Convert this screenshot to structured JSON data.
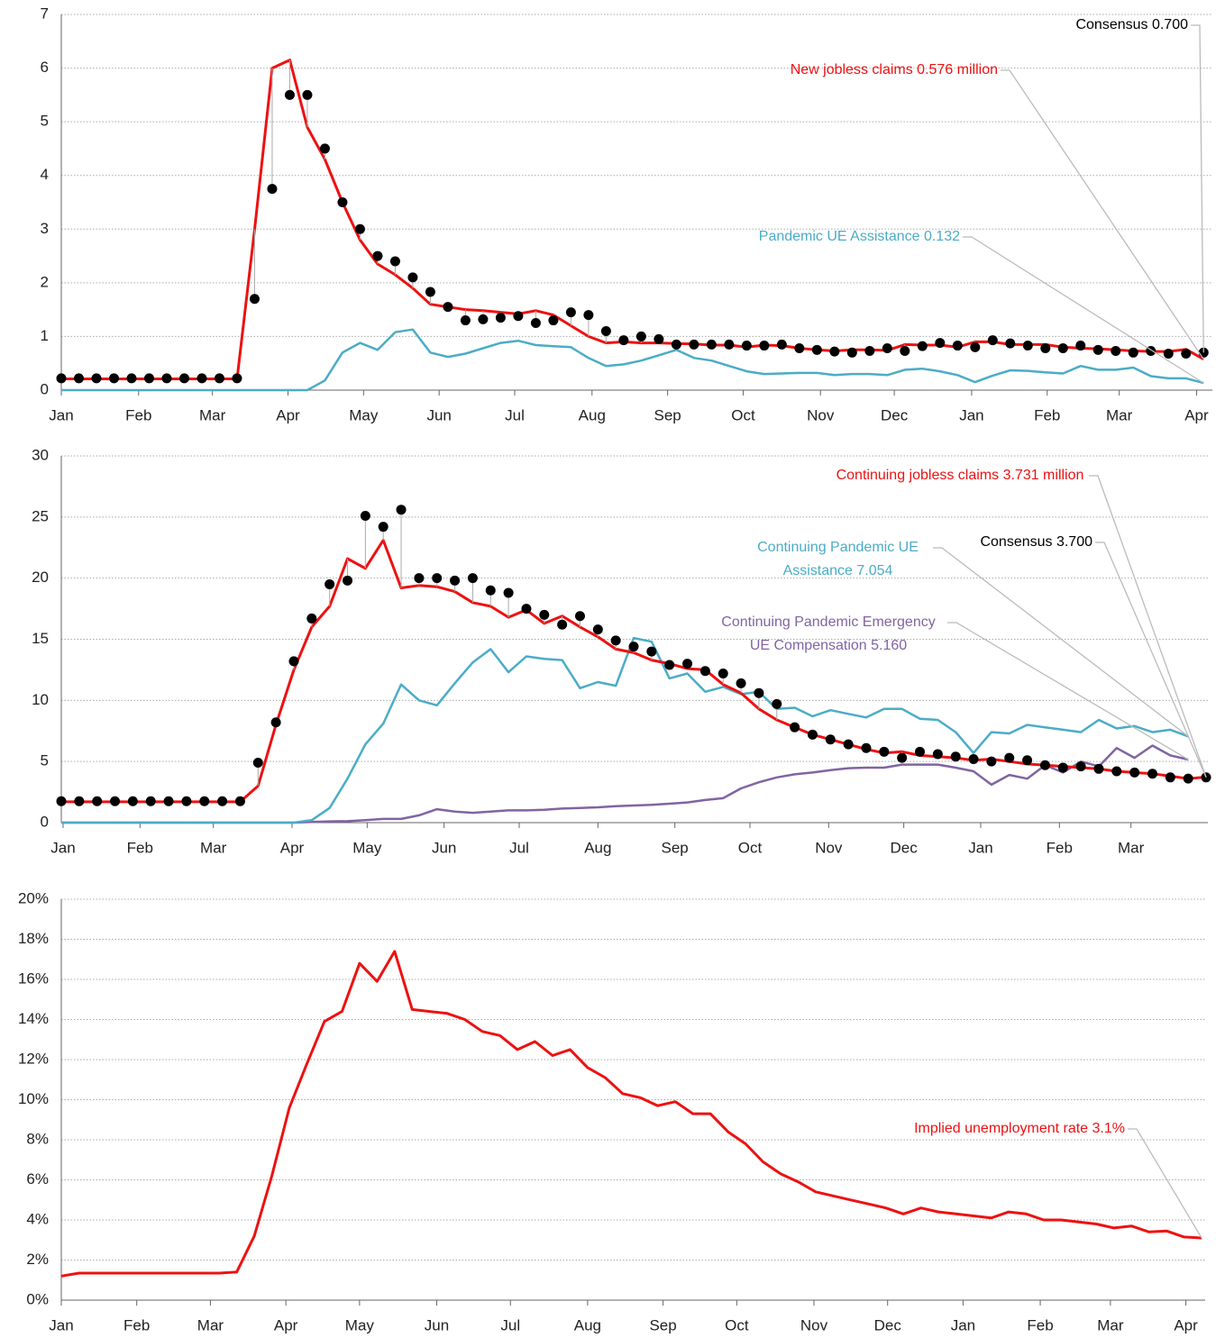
{
  "chart_data": [
    {
      "type": "line",
      "x": [
        0,
        1,
        2,
        3,
        4,
        5,
        6,
        7,
        8,
        9,
        10,
        11,
        12,
        13,
        14,
        15,
        16,
        17,
        18,
        19,
        20,
        21,
        22,
        23,
        24,
        25,
        26,
        27,
        28,
        29,
        30,
        31,
        32,
        33,
        34,
        35,
        36,
        37,
        38,
        39,
        40,
        41,
        42,
        43,
        44,
        45,
        46,
        47,
        48,
        49,
        50,
        51,
        52,
        53,
        54,
        55,
        56,
        57,
        58,
        59,
        60,
        61,
        62,
        63,
        64,
        65
      ],
      "xlim": [
        0,
        65.5
      ],
      "xticks": [
        {
          "value": 0,
          "label": "Jan"
        },
        {
          "value": 4.4,
          "label": "Feb"
        },
        {
          "value": 8.6,
          "label": "Mar"
        },
        {
          "value": 12.9,
          "label": "Apr"
        },
        {
          "value": 17.2,
          "label": "May"
        },
        {
          "value": 21.5,
          "label": "Jun"
        },
        {
          "value": 25.8,
          "label": "Jul"
        },
        {
          "value": 30.2,
          "label": "Aug"
        },
        {
          "value": 34.5,
          "label": "Sep"
        },
        {
          "value": 38.8,
          "label": "Oct"
        },
        {
          "value": 43.2,
          "label": "Nov"
        },
        {
          "value": 47.4,
          "label": "Dec"
        },
        {
          "value": 51.8,
          "label": "Jan"
        },
        {
          "value": 56.1,
          "label": "Feb"
        },
        {
          "value": 60.2,
          "label": "Mar"
        },
        {
          "value": 64.6,
          "label": "Apr"
        }
      ],
      "ylim": [
        0,
        7
      ],
      "yticks": [
        0,
        1,
        2,
        3,
        4,
        5,
        6,
        7
      ],
      "grid": true,
      "series": [
        {
          "name": "New jobless claims 0.576 million",
          "color": "#ee1111",
          "style": "line",
          "values": [
            0.21,
            0.21,
            0.21,
            0.21,
            0.21,
            0.21,
            0.21,
            0.21,
            0.21,
            0.21,
            0.21,
            3.0,
            6.0,
            6.15,
            4.9,
            4.3,
            3.5,
            2.8,
            2.35,
            2.15,
            1.9,
            1.6,
            1.55,
            1.5,
            1.48,
            1.45,
            1.42,
            1.48,
            1.4,
            1.2,
            1.0,
            0.88,
            0.9,
            0.88,
            0.88,
            0.87,
            0.86,
            0.84,
            0.84,
            0.8,
            0.84,
            0.83,
            0.78,
            0.75,
            0.73,
            0.75,
            0.75,
            0.74,
            0.85,
            0.84,
            0.84,
            0.8,
            0.9,
            0.9,
            0.85,
            0.85,
            0.85,
            0.8,
            0.78,
            0.77,
            0.75,
            0.73,
            0.72,
            0.72,
            0.76,
            0.576
          ]
        },
        {
          "name": "Consensus 0.700",
          "color": "#000000",
          "style": "dots",
          "values": [
            0.22,
            0.22,
            0.22,
            0.22,
            0.22,
            0.22,
            0.22,
            0.22,
            0.22,
            0.22,
            0.22,
            1.7,
            3.75,
            5.5,
            5.5,
            4.5,
            3.5,
            3.0,
            2.5,
            2.4,
            2.1,
            1.83,
            1.55,
            1.3,
            1.32,
            1.35,
            1.38,
            1.25,
            1.3,
            1.45,
            1.4,
            1.1,
            0.93,
            1.0,
            0.95,
            0.85,
            0.85,
            0.85,
            0.85,
            0.83,
            0.83,
            0.85,
            0.78,
            0.75,
            0.72,
            0.7,
            0.73,
            0.78,
            0.73,
            0.82,
            0.88,
            0.83,
            0.8,
            0.93,
            0.87,
            0.83,
            0.78,
            0.78,
            0.83,
            0.75,
            0.73,
            0.7,
            0.73,
            0.68,
            0.68,
            0.7
          ]
        },
        {
          "name": "Pandemic UE Assistance 0.132",
          "color": "#4bacc6",
          "style": "line",
          "values": [
            0,
            0,
            0,
            0,
            0,
            0,
            0,
            0,
            0,
            0,
            0,
            0,
            0,
            0,
            0,
            0.18,
            0.7,
            0.88,
            0.75,
            1.08,
            1.13,
            0.7,
            0.62,
            0.68,
            0.78,
            0.88,
            0.92,
            0.84,
            0.82,
            0.8,
            0.6,
            0.45,
            0.48,
            0.55,
            0.65,
            0.75,
            0.6,
            0.55,
            0.45,
            0.35,
            0.3,
            0.31,
            0.32,
            0.32,
            0.28,
            0.3,
            0.3,
            0.28,
            0.38,
            0.4,
            0.35,
            0.28,
            0.15,
            0.27,
            0.37,
            0.36,
            0.33,
            0.31,
            0.45,
            0.38,
            0.38,
            0.42,
            0.26,
            0.22,
            0.22,
            0.132
          ]
        }
      ]
    },
    {
      "type": "line",
      "x": [
        0,
        1,
        2,
        3,
        4,
        5,
        6,
        7,
        8,
        9,
        10,
        11,
        12,
        13,
        14,
        15,
        16,
        17,
        18,
        19,
        20,
        21,
        22,
        23,
        24,
        25,
        26,
        27,
        28,
        29,
        30,
        31,
        32,
        33,
        34,
        35,
        36,
        37,
        38,
        39,
        40,
        41,
        42,
        43,
        44,
        45,
        46,
        47,
        48,
        49,
        50,
        51,
        52,
        53,
        54,
        55,
        56,
        57,
        58,
        59,
        60,
        61,
        62,
        63,
        64
      ],
      "xlim": [
        0,
        64.1
      ],
      "xticks": [
        {
          "value": 0.1,
          "label": "Jan"
        },
        {
          "value": 4.4,
          "label": "Feb"
        },
        {
          "value": 8.5,
          "label": "Mar"
        },
        {
          "value": 12.9,
          "label": "Apr"
        },
        {
          "value": 17.1,
          "label": "May"
        },
        {
          "value": 21.4,
          "label": "Jun"
        },
        {
          "value": 25.6,
          "label": "Jul"
        },
        {
          "value": 30.0,
          "label": "Aug"
        },
        {
          "value": 34.3,
          "label": "Sep"
        },
        {
          "value": 38.5,
          "label": "Oct"
        },
        {
          "value": 42.9,
          "label": "Nov"
        },
        {
          "value": 47.1,
          "label": "Dec"
        },
        {
          "value": 51.4,
          "label": "Jan"
        },
        {
          "value": 55.8,
          "label": "Feb"
        },
        {
          "value": 59.8,
          "label": "Mar"
        }
      ],
      "ylim": [
        0,
        30
      ],
      "yticks": [
        0,
        5,
        10,
        15,
        20,
        25,
        30
      ],
      "grid": true,
      "series": [
        {
          "name": "Continuing jobless claims 3.731 million",
          "color": "#ee1111",
          "style": "line",
          "values": [
            1.7,
            1.7,
            1.7,
            1.7,
            1.7,
            1.7,
            1.7,
            1.7,
            1.7,
            1.7,
            1.7,
            3.0,
            8.0,
            12.5,
            16.0,
            17.7,
            21.6,
            20.8,
            23.1,
            19.2,
            19.4,
            19.3,
            18.9,
            18.0,
            17.7,
            16.8,
            17.4,
            16.3,
            16.9,
            16.0,
            15.2,
            14.2,
            13.9,
            13.3,
            13.0,
            12.6,
            12.5,
            11.3,
            10.6,
            9.3,
            8.4,
            7.8,
            7.2,
            6.8,
            6.4,
            6.0,
            5.7,
            5.8,
            5.5,
            5.4,
            5.3,
            5.1,
            5.2,
            5.0,
            4.8,
            4.7,
            4.6,
            4.5,
            4.4,
            4.2,
            4.1,
            4.0,
            3.8,
            3.6,
            3.731
          ]
        },
        {
          "name": "Consensus 3.700",
          "color": "#000000",
          "style": "dots",
          "values": [
            1.75,
            1.75,
            1.75,
            1.75,
            1.75,
            1.75,
            1.75,
            1.75,
            1.75,
            1.75,
            1.75,
            4.9,
            8.2,
            13.2,
            16.7,
            19.5,
            19.8,
            25.1,
            24.2,
            25.6,
            20.0,
            20.0,
            19.8,
            20.0,
            19.0,
            18.8,
            17.5,
            17.0,
            16.2,
            16.9,
            15.8,
            14.9,
            14.4,
            14.0,
            12.9,
            13.0,
            12.4,
            12.2,
            11.4,
            10.6,
            9.7,
            7.8,
            7.2,
            6.8,
            6.4,
            6.1,
            5.8,
            5.3,
            5.8,
            5.6,
            5.4,
            5.2,
            5.0,
            5.3,
            5.1,
            4.7,
            4.5,
            4.6,
            4.4,
            4.2,
            4.1,
            4.0,
            3.7,
            3.6,
            3.7
          ]
        },
        {
          "name": "Continuing Pandemic UE Assistance 7.054",
          "color": "#4bacc6",
          "style": "line",
          "values": [
            0,
            0,
            0,
            0,
            0,
            0,
            0,
            0,
            0,
            0,
            0,
            0,
            0,
            0,
            0.2,
            1.2,
            3.6,
            6.4,
            8.1,
            11.3,
            10.0,
            9.6,
            11.4,
            13.1,
            14.2,
            12.3,
            13.6,
            13.4,
            13.3,
            11.0,
            11.5,
            11.2,
            15.1,
            14.8,
            11.8,
            12.2,
            10.7,
            11.1,
            10.5,
            10.7,
            9.3,
            9.4,
            8.7,
            9.2,
            8.9,
            8.6,
            9.3,
            9.3,
            8.5,
            8.4,
            7.4,
            5.7,
            7.4,
            7.3,
            8.0,
            7.8,
            7.6,
            7.4,
            8.4,
            7.7,
            7.9,
            7.4,
            7.6,
            7.054,
            null
          ]
        },
        {
          "name": "Continuing Pandemic Emergency UE Compensation 5.160",
          "color": "#8064a2",
          "style": "line",
          "values": [
            0,
            0,
            0,
            0,
            0,
            0,
            0,
            0,
            0,
            0,
            0,
            0,
            0,
            0,
            0.05,
            0.1,
            0.12,
            0.2,
            0.3,
            0.3,
            0.6,
            1.1,
            0.9,
            0.8,
            0.9,
            1.0,
            1.0,
            1.05,
            1.15,
            1.2,
            1.25,
            1.35,
            1.4,
            1.45,
            1.55,
            1.65,
            1.85,
            2.0,
            2.8,
            3.3,
            3.7,
            3.95,
            4.1,
            4.3,
            4.45,
            4.5,
            4.5,
            4.75,
            4.75,
            4.75,
            4.5,
            4.2,
            3.1,
            3.9,
            3.6,
            4.7,
            4.1,
            5.0,
            4.6,
            6.1,
            5.3,
            6.3,
            5.5,
            5.16,
            null
          ]
        }
      ]
    },
    {
      "type": "line",
      "x": [
        0,
        1,
        2,
        3,
        4,
        5,
        6,
        7,
        8,
        9,
        10,
        11,
        12,
        13,
        14,
        15,
        16,
        17,
        18,
        19,
        20,
        21,
        22,
        23,
        24,
        25,
        26,
        27,
        28,
        29,
        30,
        31,
        32,
        33,
        34,
        35,
        36,
        37,
        38,
        39,
        40,
        41,
        42,
        43,
        44,
        45,
        46,
        47,
        48,
        49,
        50,
        51,
        52,
        53,
        54,
        55,
        56,
        57,
        58,
        59,
        60,
        61,
        62,
        63,
        64,
        65
      ],
      "xlim": [
        0,
        65.2
      ],
      "xticks": [
        {
          "value": 0,
          "label": "Jan"
        },
        {
          "value": 4.3,
          "label": "Feb"
        },
        {
          "value": 8.5,
          "label": "Mar"
        },
        {
          "value": 12.8,
          "label": "Apr"
        },
        {
          "value": 17.0,
          "label": "May"
        },
        {
          "value": 21.4,
          "label": "Jun"
        },
        {
          "value": 25.6,
          "label": "Jul"
        },
        {
          "value": 30.0,
          "label": "Aug"
        },
        {
          "value": 34.3,
          "label": "Sep"
        },
        {
          "value": 38.5,
          "label": "Oct"
        },
        {
          "value": 42.9,
          "label": "Nov"
        },
        {
          "value": 47.1,
          "label": "Dec"
        },
        {
          "value": 51.4,
          "label": "Jan"
        },
        {
          "value": 55.8,
          "label": "Feb"
        },
        {
          "value": 59.8,
          "label": "Mar"
        },
        {
          "value": 64.1,
          "label": "Apr"
        }
      ],
      "ylim": [
        0,
        20
      ],
      "yticks": [
        {
          "value": 0,
          "label": "0%"
        },
        {
          "value": 2,
          "label": "2%"
        },
        {
          "value": 4,
          "label": "4%"
        },
        {
          "value": 6,
          "label": "6%"
        },
        {
          "value": 8,
          "label": "8%"
        },
        {
          "value": 10,
          "label": "10%"
        },
        {
          "value": 12,
          "label": "12%"
        },
        {
          "value": 14,
          "label": "14%"
        },
        {
          "value": 16,
          "label": "16%"
        },
        {
          "value": 18,
          "label": "18%"
        },
        {
          "value": 20,
          "label": "20%"
        }
      ],
      "grid": true,
      "series": [
        {
          "name": "Implied unemployment rate 3.1%",
          "color": "#ee1111",
          "style": "line",
          "values": [
            1.2,
            1.35,
            1.35,
            1.35,
            1.35,
            1.35,
            1.35,
            1.35,
            1.35,
            1.35,
            1.4,
            3.2,
            6.2,
            9.6,
            11.8,
            13.9,
            14.4,
            16.8,
            15.9,
            17.4,
            14.5,
            14.4,
            14.3,
            14.0,
            13.4,
            13.2,
            12.5,
            12.9,
            12.2,
            12.5,
            11.6,
            11.1,
            10.3,
            10.1,
            9.7,
            9.9,
            9.3,
            9.3,
            8.4,
            7.8,
            6.9,
            6.3,
            5.9,
            5.4,
            5.2,
            5.0,
            4.8,
            4.6,
            4.3,
            4.6,
            4.4,
            4.3,
            4.2,
            4.1,
            4.4,
            4.3,
            4.0,
            4.0,
            3.9,
            3.8,
            3.6,
            3.7,
            3.4,
            3.45,
            3.15,
            3.1
          ]
        }
      ]
    }
  ]
}
